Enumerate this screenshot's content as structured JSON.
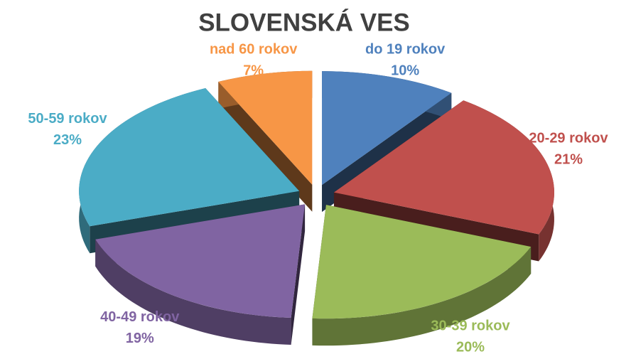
{
  "chart_data": {
    "type": "pie",
    "title": "SLOVENSKÁ VES",
    "categories": [
      "do 19 rokov",
      "20-29 rokov",
      "30-39 rokov",
      "40-49 rokov",
      "50-59 rokov",
      "nad 60 rokov"
    ],
    "values": [
      10,
      21,
      20,
      19,
      23,
      7
    ],
    "value_labels": [
      "10%",
      "21%",
      "20%",
      "19%",
      "23%",
      "7%"
    ],
    "colors": [
      "#4f81bd",
      "#c0504d",
      "#9bbb59",
      "#8064a2",
      "#4bacc6",
      "#f79646"
    ]
  }
}
